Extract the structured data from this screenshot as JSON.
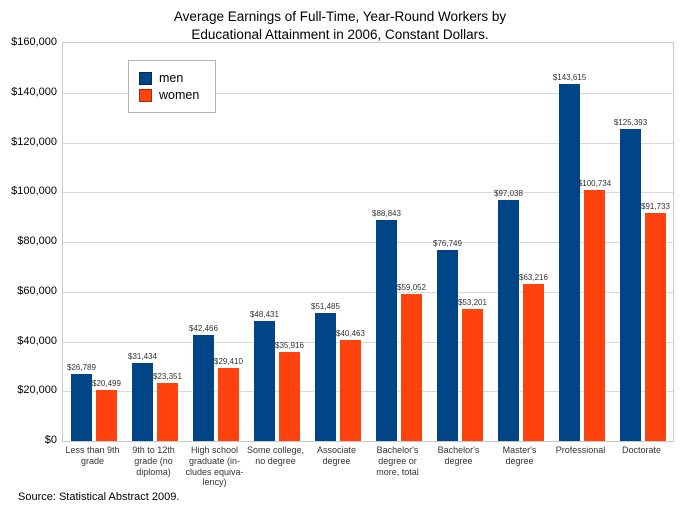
{
  "title": {
    "line1": "Average Earnings of Full-Time, Year-Round Workers by",
    "line2": "Educational Attainment in 2006, Constant Dollars."
  },
  "source": "Source: Statistical Abstract 2009.",
  "legend": {
    "items": [
      {
        "label": "men",
        "color": "#004586"
      },
      {
        "label": "women",
        "color": "#FF420E"
      }
    ]
  },
  "chart_data": {
    "type": "bar",
    "title": "Average Earnings of Full-Time, Year-Round Workers by Educational Attainment in 2006, Constant Dollars.",
    "categories": [
      "Less than 9th\ngrade",
      "9th to 12th\ngrade (no\ndiploma)",
      "High school\ngraduate (in-\ncludes equiva-\nlency)",
      "Some college,\nno degree",
      "Associate\ndegree",
      "Bachelor's\ndegree or\nmore, total",
      "Bachelor's\ndegree",
      "Master's\ndegree",
      "Professional",
      "Doctorate"
    ],
    "series": [
      {
        "name": "men",
        "color": "#004586",
        "values": [
          26789,
          31434,
          42466,
          48431,
          51485,
          88843,
          76749,
          97038,
          143615,
          125393
        ]
      },
      {
        "name": "women",
        "color": "#FF420E",
        "values": [
          20499,
          23351,
          29410,
          35916,
          40463,
          59052,
          53201,
          63216,
          100734,
          91733
        ]
      }
    ],
    "data_labels": [
      {
        "name": "men",
        "labels": [
          "$26,789",
          "$31,434",
          "$42,466",
          "$48,431",
          "$51,485",
          "$88,843",
          "$76,749",
          "$97,038",
          "$143,615",
          "$125,393"
        ]
      },
      {
        "name": "women",
        "labels": [
          "$20,499",
          "$23,351",
          "$29,410",
          "$35,916",
          "$40,463",
          "$59,052",
          "$53,201",
          "$63,216",
          "$100,734",
          "$91,733"
        ]
      }
    ],
    "ylabel_ticks": [
      "$0",
      "$20,000",
      "$40,000",
      "$60,000",
      "$80,000",
      "$100,000",
      "$120,000",
      "$140,000",
      "$160,000"
    ],
    "ylim": [
      0,
      160000
    ],
    "grid": true,
    "legend_position": "upper-left-inside"
  }
}
